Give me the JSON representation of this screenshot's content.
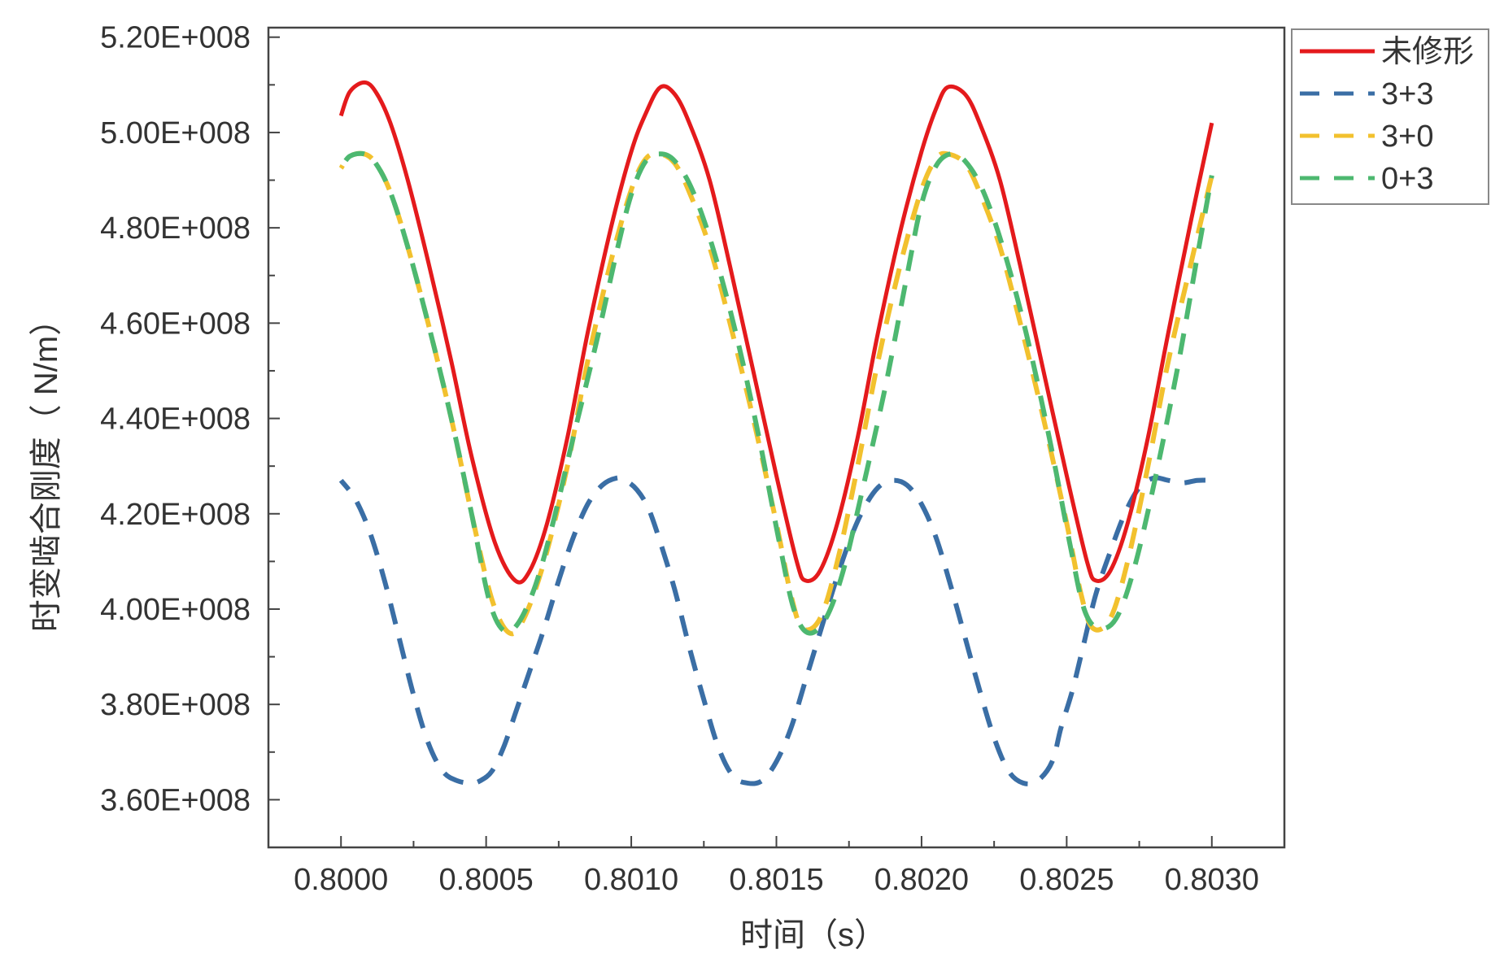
{
  "chart_data": {
    "type": "line",
    "title": "",
    "xlabel": "时间（s）",
    "ylabel": "时变啮合刚度（ N/m）",
    "xlim": [
      0.79975,
      0.80325
    ],
    "ylim": [
      350000000,
      522000000
    ],
    "xticks": [
      0.8,
      0.8005,
      0.801,
      0.8015,
      0.802,
      0.8025,
      0.803
    ],
    "xtick_labels": [
      "0.8000",
      "0.8005",
      "0.8010",
      "0.8015",
      "0.8020",
      "0.8025",
      "0.8030"
    ],
    "yticks": [
      360000000,
      380000000,
      400000000,
      420000000,
      440000000,
      460000000,
      480000000,
      500000000,
      520000000
    ],
    "ytick_labels": [
      "3.60E+008",
      "3.80E+008",
      "4.00E+008",
      "4.20E+008",
      "4.40E+008",
      "4.60E+008",
      "4.80E+008",
      "5.00E+008",
      "5.20E+008"
    ],
    "grid": false,
    "legend_position": "top-right, outside plot",
    "series": [
      {
        "name": "未修形",
        "color": "#e41a1c",
        "dash": "solid",
        "x": [
          0.8,
          0.80003,
          0.80008,
          0.80012,
          0.80017,
          0.80023,
          0.8003,
          0.80038,
          0.80045,
          0.80053,
          0.8006,
          0.80065,
          0.80071,
          0.80078,
          0.80085,
          0.80093,
          0.801,
          0.80105,
          0.8011,
          0.80115,
          0.8012,
          0.80127,
          0.80134,
          0.80142,
          0.8015,
          0.80157,
          0.8016,
          0.80165,
          0.80171,
          0.80178,
          0.80185,
          0.80193,
          0.802,
          0.80205,
          0.80209,
          0.80215,
          0.8022,
          0.80227,
          0.80234,
          0.80242,
          0.8025,
          0.80257,
          0.8026,
          0.80265,
          0.80271,
          0.80278,
          0.80285,
          0.80293,
          0.803
        ],
        "values": [
          503500000,
          508500000,
          510500000,
          508500000,
          502000000,
          490000000,
          473000000,
          452000000,
          432000000,
          414000000,
          406000000,
          408000000,
          418000000,
          436000000,
          458000000,
          480000000,
          496000000,
          504000000,
          509500000,
          508000000,
          502000000,
          490000000,
          472000000,
          450000000,
          428000000,
          410000000,
          406000000,
          408000000,
          418000000,
          436000000,
          458000000,
          480000000,
          496000000,
          505000000,
          509500000,
          508000000,
          502000000,
          490000000,
          472000000,
          450000000,
          428000000,
          410000000,
          406000000,
          408000000,
          418000000,
          436000000,
          458000000,
          482000000,
          502000000
        ]
      },
      {
        "name": "3+3",
        "color": "#3a6ea5",
        "dash": "dashed",
        "x": [
          0.8,
          0.80005,
          0.8001,
          0.80015,
          0.8002,
          0.80025,
          0.8003,
          0.80035,
          0.8004,
          0.80045,
          0.80048,
          0.80052,
          0.80056,
          0.8006,
          0.80065,
          0.8007,
          0.80075,
          0.8008,
          0.80085,
          0.8009,
          0.80095,
          0.80098,
          0.80102,
          0.80106,
          0.8011,
          0.80115,
          0.8012,
          0.80125,
          0.8013,
          0.80135,
          0.8014,
          0.80145,
          0.8015,
          0.80155,
          0.8016,
          0.80165,
          0.8017,
          0.80175,
          0.8018,
          0.80185,
          0.8019,
          0.80195,
          0.802,
          0.80205,
          0.8021,
          0.80215,
          0.8022,
          0.80225,
          0.8023,
          0.80235,
          0.8024,
          0.80245,
          0.80248,
          0.80252,
          0.80256,
          0.8026,
          0.80265,
          0.8027,
          0.80275,
          0.8028,
          0.80285,
          0.8029,
          0.80295,
          0.803
        ],
        "values": [
          427000000,
          423000000,
          416000000,
          406000000,
          394000000,
          382000000,
          372000000,
          366000000,
          364000000,
          363500000,
          364000000,
          366000000,
          371000000,
          378000000,
          387000000,
          396000000,
          406000000,
          415000000,
          422000000,
          426000000,
          427500000,
          427000000,
          425000000,
          421000000,
          414000000,
          404000000,
          392000000,
          381000000,
          371000000,
          365000000,
          363500000,
          364000000,
          368000000,
          375000000,
          385000000,
          395000000,
          405000000,
          414000000,
          421000000,
          425500000,
          427000000,
          426000000,
          422000000,
          415000000,
          405000000,
          394000000,
          383000000,
          373000000,
          366000000,
          363500000,
          364000000,
          368000000,
          375000000,
          383000000,
          393000000,
          403000000,
          412000000,
          420000000,
          425500000,
          427500000,
          427000000,
          426500000,
          427000000,
          427000000
        ]
      },
      {
        "name": "3+0",
        "color": "#f2c12e",
        "dash": "dashed",
        "x": [
          0.8,
          0.80003,
          0.80008,
          0.80012,
          0.80017,
          0.80023,
          0.8003,
          0.80038,
          0.80045,
          0.80052,
          0.80058,
          0.80063,
          0.8007,
          0.80078,
          0.80085,
          0.80093,
          0.801,
          0.80105,
          0.8011,
          0.80115,
          0.8012,
          0.80127,
          0.80134,
          0.80142,
          0.8015,
          0.80155,
          0.80159,
          0.80165,
          0.80171,
          0.80178,
          0.80185,
          0.80193,
          0.802,
          0.80205,
          0.80209,
          0.80215,
          0.8022,
          0.80227,
          0.80234,
          0.80242,
          0.8025,
          0.80255,
          0.80259,
          0.80265,
          0.80271,
          0.80278,
          0.80285,
          0.80293,
          0.803
        ],
        "values": [
          492500000,
          495000000,
          495500000,
          493500000,
          487500000,
          476000000,
          460000000,
          440000000,
          420000000,
          402000000,
          395000000,
          398000000,
          410000000,
          430000000,
          452000000,
          473000000,
          488000000,
          494500000,
          495500000,
          493500000,
          487500000,
          476000000,
          460000000,
          440000000,
          418000000,
          403000000,
          396000000,
          398000000,
          410000000,
          430000000,
          452000000,
          473000000,
          488000000,
          494500000,
          495500000,
          493500000,
          487500000,
          476000000,
          460000000,
          440000000,
          418000000,
          403000000,
          396000000,
          398000000,
          410000000,
          430000000,
          452000000,
          473000000,
          491000000
        ]
      },
      {
        "name": "0+3",
        "color": "#4db870",
        "dash": "dashed",
        "x": [
          0.8,
          0.80003,
          0.80008,
          0.80012,
          0.80017,
          0.80023,
          0.8003,
          0.80038,
          0.80045,
          0.80051,
          0.80056,
          0.80061,
          0.80067,
          0.80073,
          0.8008,
          0.80088,
          0.80095,
          0.801,
          0.80105,
          0.8011,
          0.80115,
          0.80121,
          0.80128,
          0.80136,
          0.80144,
          0.80151,
          0.80156,
          0.80161,
          0.80167,
          0.80173,
          0.8018,
          0.80188,
          0.80195,
          0.802,
          0.80205,
          0.8021,
          0.80215,
          0.80221,
          0.80228,
          0.80236,
          0.80244,
          0.80251,
          0.80256,
          0.80261,
          0.80267,
          0.80273,
          0.8028,
          0.80288,
          0.80295,
          0.803
        ],
        "values": [
          492500000,
          495000000,
          495500000,
          493500000,
          487500000,
          476000000,
          460000000,
          440000000,
          420000000,
          402000000,
          395500000,
          397000000,
          405000000,
          418000000,
          436000000,
          456000000,
          475000000,
          487000000,
          494000000,
          495500000,
          494000000,
          488000000,
          476000000,
          458000000,
          436000000,
          414000000,
          400000000,
          395000000,
          398000000,
          408000000,
          426000000,
          448000000,
          470000000,
          485000000,
          493000000,
          495500000,
          494000000,
          488000000,
          476000000,
          458000000,
          436000000,
          414000000,
          400000000,
          396000000,
          398000000,
          408000000,
          426000000,
          450000000,
          474000000,
          491000000
        ]
      }
    ]
  }
}
